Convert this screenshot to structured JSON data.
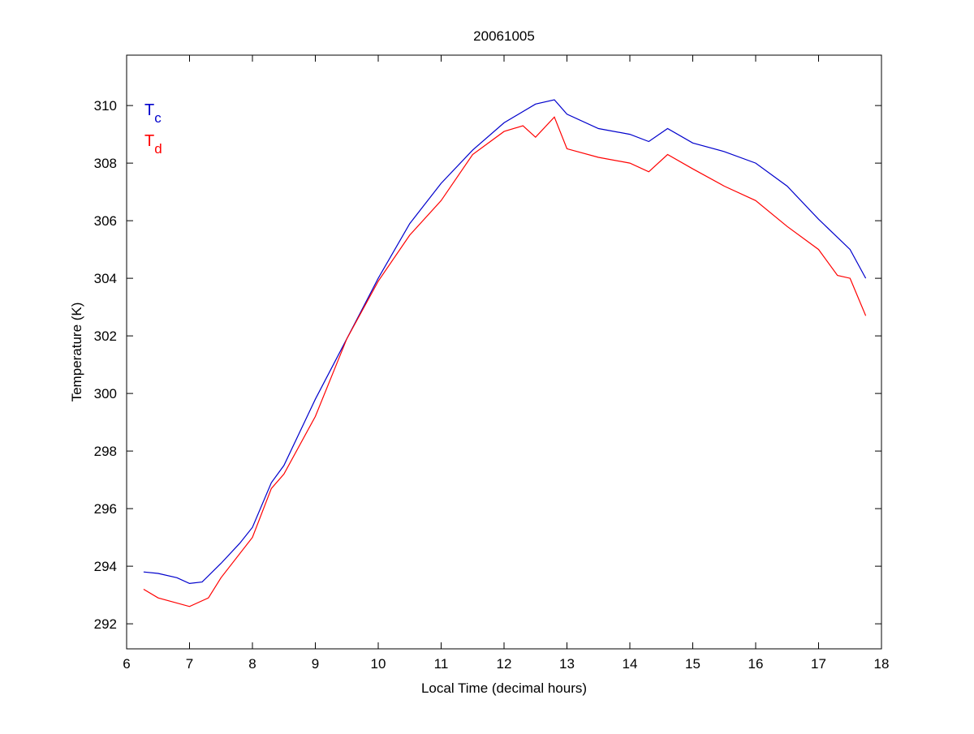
{
  "chart_data": {
    "type": "line",
    "title": "20061005",
    "xlabel": "Local Time (decimal hours)",
    "ylabel": "Temperature (K)",
    "xlim": [
      6,
      18
    ],
    "ylim": [
      291.13,
      311.75
    ],
    "xticks": [
      6,
      7,
      8,
      9,
      10,
      11,
      12,
      13,
      14,
      15,
      16,
      17,
      18
    ],
    "yticks": [
      292,
      294,
      296,
      298,
      300,
      302,
      304,
      306,
      308,
      310
    ],
    "grid": false,
    "legend_placement": "top-left",
    "series": [
      {
        "name": "T",
        "subscript": "c",
        "color": "#0000cc",
        "x": [
          6.27,
          6.5,
          6.8,
          7.0,
          7.2,
          7.5,
          7.8,
          8.0,
          8.3,
          8.5,
          9.0,
          9.5,
          10.0,
          10.5,
          11.0,
          11.5,
          12.0,
          12.5,
          12.8,
          13.0,
          13.5,
          14.0,
          14.3,
          14.6,
          15.0,
          15.5,
          16.0,
          16.5,
          17.0,
          17.5,
          17.75
        ],
        "y": [
          293.8,
          293.75,
          293.6,
          293.4,
          293.45,
          294.1,
          294.8,
          295.35,
          296.9,
          297.5,
          299.8,
          301.9,
          304.0,
          305.9,
          307.3,
          308.45,
          309.4,
          310.05,
          310.2,
          309.7,
          309.2,
          309.0,
          308.75,
          309.2,
          308.7,
          308.4,
          308.0,
          307.2,
          306.05,
          305.0,
          304.0
        ]
      },
      {
        "name": "T",
        "subscript": "d",
        "color": "#ff0000",
        "x": [
          6.27,
          6.5,
          7.0,
          7.3,
          7.5,
          8.0,
          8.3,
          8.5,
          9.0,
          9.5,
          10.0,
          10.5,
          11.0,
          11.5,
          12.0,
          12.3,
          12.5,
          12.8,
          13.0,
          13.5,
          14.0,
          14.3,
          14.6,
          15.0,
          15.5,
          16.0,
          16.5,
          17.0,
          17.3,
          17.5,
          17.75
        ],
        "y": [
          293.2,
          292.9,
          292.6,
          292.9,
          293.6,
          295.0,
          296.7,
          297.2,
          299.2,
          301.9,
          303.9,
          305.5,
          306.7,
          308.3,
          309.1,
          309.3,
          308.9,
          309.6,
          308.5,
          308.2,
          308.0,
          307.7,
          308.3,
          307.8,
          307.2,
          306.7,
          305.8,
          305.0,
          304.1,
          304.0,
          302.7
        ]
      }
    ]
  }
}
